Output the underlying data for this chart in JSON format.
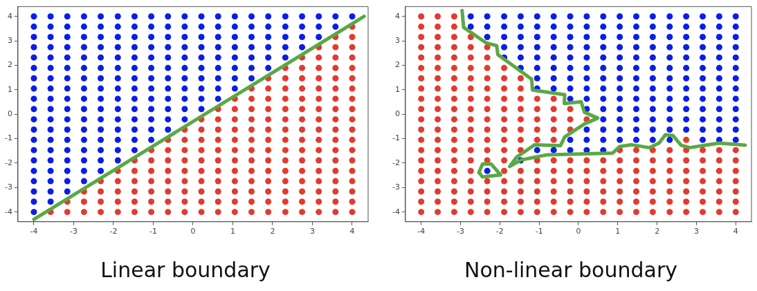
{
  "chart_data": [
    {
      "type": "scatter",
      "title": "Linear boundary",
      "xlim": [
        -4.4,
        4.4
      ],
      "ylim": [
        -4.4,
        4.4
      ],
      "xticks": [
        -4,
        -3,
        -2,
        -1,
        0,
        1,
        2,
        3,
        4
      ],
      "yticks": [
        -4,
        -3,
        -2,
        -1,
        0,
        1,
        2,
        3,
        4
      ],
      "grid": false,
      "legend": false,
      "marker": "circle",
      "series": [
        {
          "color": "#0a1ee6",
          "x": [
            -4,
            -3.58,
            -3.16,
            -2.74,
            -2.32,
            -1.89,
            -1.47,
            -1.05,
            -0.63,
            -0.21,
            0.21,
            0.63,
            1.05,
            1.47,
            1.89,
            2.32,
            2.74,
            3.16,
            3.58,
            4,
            -4,
            -3.58,
            -3.16,
            -2.74,
            -2.32,
            -1.89,
            -1.47,
            -1.05,
            -0.63,
            -0.21,
            0.21,
            0.63,
            1.05,
            1.47,
            1.89,
            2.32,
            2.74,
            3.16,
            3.58,
            -4,
            -3.58,
            -3.16,
            -2.74,
            -2.32,
            -1.89,
            -1.47,
            -1.05,
            -0.63,
            -0.21,
            0.21,
            0.63,
            1.05,
            1.47,
            1.89,
            2.32,
            2.74,
            3.16,
            -4,
            -3.58,
            -3.16,
            -2.74,
            -2.32,
            -1.89,
            -1.47,
            -1.05,
            -0.63,
            -0.21,
            0.21,
            0.63,
            1.05,
            1.47,
            1.89,
            2.32,
            2.74,
            -4,
            -3.58,
            -3.16,
            -2.74,
            -2.32,
            -1.89,
            -1.47,
            -1.05,
            -0.63,
            -0.21,
            0.21,
            0.63,
            1.05,
            1.47,
            1.89,
            2.32,
            -4,
            -3.58,
            -3.16,
            -2.74,
            -2.32,
            -1.89,
            -1.47,
            -1.05,
            -0.63,
            -0.21,
            0.21,
            0.63,
            1.05,
            1.47,
            1.89,
            -4,
            -3.58,
            -3.16,
            -2.74,
            -2.32,
            -1.89,
            -1.47,
            -1.05,
            -0.63,
            -0.21,
            0.21,
            0.63,
            1.05,
            1.47,
            -4,
            -3.58,
            -3.16,
            -2.74,
            -2.32,
            -1.89,
            -1.47,
            -1.05,
            -0.63,
            -0.21,
            0.21,
            0.63,
            1.05,
            -4,
            -3.58,
            -3.16,
            -2.74,
            -2.32,
            -1.89,
            -1.47,
            -1.05,
            -0.63,
            -0.21,
            0.21,
            0.63,
            -4,
            -3.58,
            -3.16,
            -2.74,
            -2.32,
            -1.89,
            -1.47,
            -1.05,
            -0.63,
            -0.21,
            0.21,
            -4,
            -3.58,
            -3.16,
            -2.74,
            -2.32,
            -1.89,
            -1.47,
            -1.05,
            -0.63,
            -0.21,
            -4,
            -3.58,
            -3.16,
            -2.74,
            -2.32,
            -1.89,
            -1.47,
            -1.05,
            -0.63,
            -4,
            -3.58,
            -3.16,
            -2.74,
            -2.32,
            -1.89,
            -1.47,
            -1.05,
            -4,
            -3.58,
            -3.16,
            -2.74,
            -2.32,
            -1.89,
            -1.47,
            -4,
            -3.58,
            -3.16,
            -2.74,
            -2.32,
            -1.89,
            -4,
            -3.58,
            -3.16,
            -2.74,
            -2.32,
            -4,
            -3.58,
            -3.16,
            -2.74,
            -4,
            -3.58,
            -3.16,
            -4,
            -3.58,
            -4
          ],
          "values": [
            4,
            4,
            4,
            4,
            4,
            4,
            4,
            4,
            4,
            4,
            4,
            4,
            4,
            4,
            4,
            4,
            4,
            4,
            4,
            4,
            3.58,
            3.58,
            3.58,
            3.58,
            3.58,
            3.58,
            3.58,
            3.58,
            3.58,
            3.58,
            3.58,
            3.58,
            3.58,
            3.58,
            3.58,
            3.58,
            3.58,
            3.58,
            3.58,
            3.16,
            3.16,
            3.16,
            3.16,
            3.16,
            3.16,
            3.16,
            3.16,
            3.16,
            3.16,
            3.16,
            3.16,
            3.16,
            3.16,
            3.16,
            3.16,
            3.16,
            3.16,
            2.74,
            2.74,
            2.74,
            2.74,
            2.74,
            2.74,
            2.74,
            2.74,
            2.74,
            2.74,
            2.74,
            2.74,
            2.74,
            2.74,
            2.74,
            2.74,
            2.74,
            2.32,
            2.32,
            2.32,
            2.32,
            2.32,
            2.32,
            2.32,
            2.32,
            2.32,
            2.32,
            2.32,
            2.32,
            2.32,
            2.32,
            2.32,
            2.32,
            1.89,
            1.89,
            1.89,
            1.89,
            1.89,
            1.89,
            1.89,
            1.89,
            1.89,
            1.89,
            1.89,
            1.89,
            1.89,
            1.89,
            1.89,
            1.47,
            1.47,
            1.47,
            1.47,
            1.47,
            1.47,
            1.47,
            1.47,
            1.47,
            1.47,
            1.47,
            1.47,
            1.47,
            1.47,
            1.05,
            1.05,
            1.05,
            1.05,
            1.05,
            1.05,
            1.05,
            1.05,
            1.05,
            1.05,
            1.05,
            1.05,
            1.05,
            0.63,
            0.63,
            0.63,
            0.63,
            0.63,
            0.63,
            0.63,
            0.63,
            0.63,
            0.63,
            0.63,
            0.63,
            0.21,
            0.21,
            0.21,
            0.21,
            0.21,
            0.21,
            0.21,
            0.21,
            0.21,
            0.21,
            0.21,
            -0.21,
            -0.21,
            -0.21,
            -0.21,
            -0.21,
            -0.21,
            -0.21,
            -0.21,
            -0.21,
            -0.21,
            -0.63,
            -0.63,
            -0.63,
            -0.63,
            -0.63,
            -0.63,
            -0.63,
            -0.63,
            -0.63,
            -1.05,
            -1.05,
            -1.05,
            -1.05,
            -1.05,
            -1.05,
            -1.05,
            -1.05,
            -1.47,
            -1.47,
            -1.47,
            -1.47,
            -1.47,
            -1.47,
            -1.47,
            -1.89,
            -1.89,
            -1.89,
            -1.89,
            -1.89,
            -1.89,
            -2.32,
            -2.32,
            -2.32,
            -2.32,
            -2.32,
            -2.74,
            -2.74,
            -2.74,
            -2.74,
            -3.16,
            -3.16,
            -3.16,
            -3.58,
            -3.58,
            -4
          ]
        },
        {
          "color": "#e33a2f",
          "x": [
            4,
            3.58,
            4,
            3.16,
            3.58,
            4,
            2.74,
            3.16,
            3.58,
            4,
            2.32,
            2.74,
            3.16,
            3.58,
            4,
            1.89,
            2.32,
            2.74,
            3.16,
            3.58,
            4,
            1.47,
            1.89,
            2.32,
            2.74,
            3.16,
            3.58,
            4,
            1.05,
            1.47,
            1.89,
            2.32,
            2.74,
            3.16,
            3.58,
            4,
            0.63,
            1.05,
            1.47,
            1.89,
            2.32,
            2.74,
            3.16,
            3.58,
            4,
            0.21,
            0.63,
            1.05,
            1.47,
            1.89,
            2.32,
            2.74,
            3.16,
            3.58,
            4,
            -0.21,
            0.21,
            0.63,
            1.05,
            1.47,
            1.89,
            2.32,
            2.74,
            3.16,
            3.58,
            4,
            -0.63,
            -0.21,
            0.21,
            0.63,
            1.05,
            1.47,
            1.89,
            2.32,
            2.74,
            3.16,
            3.58,
            4,
            -1.05,
            -0.63,
            -0.21,
            0.21,
            0.63,
            1.05,
            1.47,
            1.89,
            2.32,
            2.74,
            3.16,
            3.58,
            4,
            -1.47,
            -1.05,
            -0.63,
            -0.21,
            0.21,
            0.63,
            1.05,
            1.47,
            1.89,
            2.32,
            2.74,
            3.16,
            3.58,
            4,
            -1.89,
            -1.47,
            -1.05,
            -0.63,
            -0.21,
            0.21,
            0.63,
            1.05,
            1.47,
            1.89,
            2.32,
            2.74,
            3.16,
            3.58,
            4,
            -2.32,
            -1.89,
            -1.47,
            -1.05,
            -0.63,
            -0.21,
            0.21,
            0.63,
            1.05,
            1.47,
            1.89,
            2.32,
            2.74,
            3.16,
            3.58,
            4,
            -2.74,
            -2.32,
            -1.89,
            -1.47,
            -1.05,
            -0.63,
            -0.21,
            0.21,
            0.63,
            1.05,
            1.47,
            1.89,
            2.32,
            2.74,
            3.16,
            3.58,
            4,
            -3.16,
            -2.74,
            -2.32,
            -1.89,
            -1.47,
            -1.05,
            -0.63,
            -0.21,
            0.21,
            0.63,
            1.05,
            1.47,
            1.89,
            2.32,
            2.74,
            3.16,
            3.58,
            4,
            -3.58,
            -3.16,
            -2.74,
            -2.32,
            -1.89,
            -1.47,
            -1.05,
            -0.63,
            -0.21,
            0.21,
            0.63,
            1.05,
            1.47,
            1.89,
            2.32,
            2.74,
            3.16,
            3.58,
            4
          ],
          "values": [
            3.58,
            3.16,
            3.16,
            2.74,
            2.74,
            2.74,
            2.32,
            2.32,
            2.32,
            2.32,
            1.89,
            1.89,
            1.89,
            1.89,
            1.89,
            1.47,
            1.47,
            1.47,
            1.47,
            1.47,
            1.47,
            1.05,
            1.05,
            1.05,
            1.05,
            1.05,
            1.05,
            1.05,
            0.63,
            0.63,
            0.63,
            0.63,
            0.63,
            0.63,
            0.63,
            0.63,
            0.21,
            0.21,
            0.21,
            0.21,
            0.21,
            0.21,
            0.21,
            0.21,
            0.21,
            -0.21,
            -0.21,
            -0.21,
            -0.21,
            -0.21,
            -0.21,
            -0.21,
            -0.21,
            -0.21,
            -0.21,
            -0.63,
            -0.63,
            -0.63,
            -0.63,
            -0.63,
            -0.63,
            -0.63,
            -0.63,
            -0.63,
            -0.63,
            -0.63,
            -1.05,
            -1.05,
            -1.05,
            -1.05,
            -1.05,
            -1.05,
            -1.05,
            -1.05,
            -1.05,
            -1.05,
            -1.05,
            -1.05,
            -1.47,
            -1.47,
            -1.47,
            -1.47,
            -1.47,
            -1.47,
            -1.47,
            -1.47,
            -1.47,
            -1.47,
            -1.47,
            -1.47,
            -1.47,
            -1.89,
            -1.89,
            -1.89,
            -1.89,
            -1.89,
            -1.89,
            -1.89,
            -1.89,
            -1.89,
            -1.89,
            -1.89,
            -1.89,
            -1.89,
            -1.89,
            -2.32,
            -2.32,
            -2.32,
            -2.32,
            -2.32,
            -2.32,
            -2.32,
            -2.32,
            -2.32,
            -2.32,
            -2.32,
            -2.32,
            -2.32,
            -2.32,
            -2.32,
            -2.74,
            -2.74,
            -2.74,
            -2.74,
            -2.74,
            -2.74,
            -2.74,
            -2.74,
            -2.74,
            -2.74,
            -2.74,
            -2.74,
            -2.74,
            -2.74,
            -2.74,
            -2.74,
            -3.16,
            -3.16,
            -3.16,
            -3.16,
            -3.16,
            -3.16,
            -3.16,
            -3.16,
            -3.16,
            -3.16,
            -3.16,
            -3.16,
            -3.16,
            -3.16,
            -3.16,
            -3.16,
            -3.16,
            -3.58,
            -3.58,
            -3.58,
            -3.58,
            -3.58,
            -3.58,
            -3.58,
            -3.58,
            -3.58,
            -3.58,
            -3.58,
            -3.58,
            -3.58,
            -3.58,
            -3.58,
            -3.58,
            -3.58,
            -3.58,
            -4,
            -4,
            -4,
            -4,
            -4,
            -4,
            -4,
            -4,
            -4,
            -4,
            -4,
            -4,
            -4,
            -4,
            -4,
            -4,
            -4,
            -4,
            -4
          ]
        },
        {
          "type": "line",
          "marker": "none",
          "color": "#5aa845",
          "x": [
            -4,
            4.3
          ],
          "values": [
            -4.3,
            4
          ]
        }
      ]
    },
    {
      "type": "scatter",
      "title": "Non-linear boundary",
      "xlim": [
        -4.4,
        4.4
      ],
      "ylim": [
        -4.4,
        4.4
      ],
      "xticks": [
        -4,
        -3,
        -2,
        -1,
        0,
        1,
        2,
        3,
        4
      ],
      "yticks": [
        -4,
        -3,
        -2,
        -1,
        0,
        1,
        2,
        3,
        4
      ],
      "grid": false,
      "legend": false,
      "marker": "circle",
      "series": [
        {
          "color": "#0a1ee6",
          "x": [
            -2.74,
            -2.32,
            -1.89,
            -1.47,
            -1.05,
            -0.63,
            -0.21,
            0.21,
            0.63,
            1.05,
            1.47,
            1.89,
            2.32,
            2.74,
            3.16,
            3.58,
            4,
            -2.74,
            -2.32,
            -1.89,
            -1.47,
            -1.05,
            -0.63,
            -0.21,
            0.21,
            0.63,
            1.05,
            1.47,
            1.89,
            2.32,
            2.74,
            3.16,
            3.58,
            4,
            -2.32,
            -1.89,
            -1.47,
            -1.05,
            -0.63,
            -0.21,
            0.21,
            0.63,
            1.05,
            1.47,
            1.89,
            2.32,
            2.74,
            3.16,
            3.58,
            4,
            -1.89,
            -1.47,
            -1.05,
            -0.63,
            -0.21,
            0.21,
            0.63,
            1.05,
            1.47,
            1.89,
            2.32,
            2.74,
            3.16,
            3.58,
            4,
            -1.89,
            -1.47,
            -1.05,
            -0.63,
            -0.21,
            0.21,
            0.63,
            1.05,
            1.47,
            1.89,
            2.32,
            2.74,
            3.16,
            3.58,
            4,
            -1.47,
            -1.05,
            -0.63,
            -0.21,
            0.21,
            0.63,
            1.05,
            1.47,
            1.89,
            2.32,
            2.74,
            3.16,
            3.58,
            4,
            -1.05,
            -0.63,
            -0.21,
            0.21,
            0.63,
            1.05,
            1.47,
            1.89,
            2.32,
            2.74,
            3.16,
            3.58,
            4,
            -1.05,
            -0.63,
            -0.21,
            0.21,
            0.63,
            1.05,
            1.47,
            1.89,
            2.32,
            2.74,
            3.16,
            3.58,
            4,
            -0.21,
            0.21,
            0.63,
            1.05,
            1.47,
            1.89,
            2.32,
            2.74,
            3.16,
            3.58,
            4,
            0.21,
            0.63,
            1.05,
            1.47,
            1.89,
            2.32,
            2.74,
            3.16,
            3.58,
            4,
            0.63,
            1.05,
            1.47,
            1.89,
            2.32,
            2.74,
            3.16,
            3.58,
            4,
            0.21,
            0.63,
            1.05,
            1.47,
            1.89,
            2.32,
            2.74,
            3.16,
            3.58,
            4,
            -0.21,
            0.21,
            0.63,
            1.05,
            1.47,
            1.89,
            2.32,
            3.16,
            3.58,
            4,
            -1.05,
            -0.63,
            -0.21,
            0.21,
            0.63,
            -1.47,
            -2.32
          ],
          "values": [
            4,
            4,
            4,
            4,
            4,
            4,
            4,
            4,
            4,
            4,
            4,
            4,
            4,
            4,
            4,
            4,
            4,
            3.58,
            3.58,
            3.58,
            3.58,
            3.58,
            3.58,
            3.58,
            3.58,
            3.58,
            3.58,
            3.58,
            3.58,
            3.58,
            3.58,
            3.58,
            3.58,
            3.58,
            3.16,
            3.16,
            3.16,
            3.16,
            3.16,
            3.16,
            3.16,
            3.16,
            3.16,
            3.16,
            3.16,
            3.16,
            3.16,
            3.16,
            3.16,
            3.16,
            2.74,
            2.74,
            2.74,
            2.74,
            2.74,
            2.74,
            2.74,
            2.74,
            2.74,
            2.74,
            2.74,
            2.74,
            2.74,
            2.74,
            2.74,
            2.32,
            2.32,
            2.32,
            2.32,
            2.32,
            2.32,
            2.32,
            2.32,
            2.32,
            2.32,
            2.32,
            2.32,
            2.32,
            2.32,
            2.32,
            1.89,
            1.89,
            1.89,
            1.89,
            1.89,
            1.89,
            1.89,
            1.89,
            1.89,
            1.89,
            1.89,
            1.89,
            1.89,
            1.89,
            1.47,
            1.47,
            1.47,
            1.47,
            1.47,
            1.47,
            1.47,
            1.47,
            1.47,
            1.47,
            1.47,
            1.47,
            1.47,
            1.05,
            1.05,
            1.05,
            1.05,
            1.05,
            1.05,
            1.05,
            1.05,
            1.05,
            1.05,
            1.05,
            1.05,
            1.05,
            0.63,
            0.63,
            0.63,
            0.63,
            0.63,
            0.63,
            0.63,
            0.63,
            0.63,
            0.63,
            0.63,
            0.21,
            0.21,
            0.21,
            0.21,
            0.21,
            0.21,
            0.21,
            0.21,
            0.21,
            0.21,
            -0.21,
            -0.21,
            -0.21,
            -0.21,
            -0.21,
            -0.21,
            -0.21,
            -0.21,
            -0.21,
            -0.63,
            -0.63,
            -0.63,
            -0.63,
            -0.63,
            -0.63,
            -0.63,
            -0.63,
            -0.63,
            -0.63,
            -1.05,
            -1.05,
            -1.05,
            -1.05,
            -1.05,
            -1.05,
            -1.05,
            -1.05,
            -1.05,
            -1.05,
            -1.47,
            -1.47,
            -1.47,
            -1.47,
            -1.47,
            -1.89,
            -2.32
          ]
        },
        {
          "color": "#e33a2f",
          "x": [
            -4,
            -3.58,
            -3.16,
            -4,
            -3.58,
            -3.16,
            -4,
            -3.58,
            -3.16,
            -2.74,
            -4,
            -3.58,
            -3.16,
            -2.74,
            -2.32,
            -4,
            -3.58,
            -3.16,
            -2.74,
            -2.32,
            -4,
            -3.58,
            -3.16,
            -2.74,
            -2.32,
            -1.89,
            -4,
            -3.58,
            -3.16,
            -2.74,
            -2.32,
            -1.89,
            -1.47,
            -4,
            -3.58,
            -3.16,
            -2.74,
            -2.32,
            -1.89,
            -1.47,
            -4,
            -3.58,
            -3.16,
            -2.74,
            -2.32,
            -1.89,
            -1.47,
            -1.05,
            -0.63,
            -4,
            -3.58,
            -3.16,
            -2.74,
            -2.32,
            -1.89,
            -1.47,
            -1.05,
            -0.63,
            -0.21,
            -4,
            -3.58,
            -3.16,
            -2.74,
            -2.32,
            -1.89,
            -1.47,
            -1.05,
            -0.63,
            -0.21,
            0.21,
            -4,
            -3.58,
            -3.16,
            -2.74,
            -2.32,
            -1.89,
            -1.47,
            -1.05,
            -0.63,
            -0.21,
            -4,
            -3.58,
            -3.16,
            -2.74,
            -2.32,
            -1.89,
            -1.47,
            -1.05,
            -0.63,
            2.74,
            -4,
            -3.58,
            -3.16,
            -2.74,
            -2.32,
            -1.89,
            -1.47,
            1.05,
            1.47,
            1.89,
            2.32,
            2.74,
            3.16,
            3.58,
            4,
            -4,
            -3.58,
            -3.16,
            -2.74,
            -2.32,
            -1.89,
            -1.05,
            -0.63,
            -0.21,
            0.21,
            0.63,
            1.05,
            1.47,
            1.89,
            2.32,
            2.74,
            3.16,
            3.58,
            4,
            -4,
            -3.58,
            -3.16,
            -2.74,
            -1.89,
            -1.47,
            -1.05,
            -0.63,
            -0.21,
            0.21,
            0.63,
            1.05,
            1.47,
            1.89,
            2.32,
            2.74,
            3.16,
            3.58,
            4,
            -4,
            -3.58,
            -3.16,
            -2.74,
            -2.32,
            -1.89,
            -1.47,
            -1.05,
            -0.63,
            -0.21,
            0.21,
            0.63,
            1.05,
            1.47,
            1.89,
            2.32,
            2.74,
            3.16,
            3.58,
            4,
            -4,
            -3.58,
            -3.16,
            -2.74,
            -2.32,
            -1.89,
            -1.47,
            -1.05,
            -0.63,
            -0.21,
            0.21,
            0.63,
            1.05,
            1.47,
            1.89,
            2.32,
            2.74,
            3.16,
            3.58,
            4,
            -4,
            -3.58,
            -3.16,
            -2.74,
            -2.32,
            -1.89,
            -1.47,
            -1.05,
            -0.63,
            -0.21,
            0.21,
            0.63,
            1.05,
            1.47,
            1.89,
            2.32,
            2.74,
            3.16,
            3.58,
            4,
            -4,
            -3.58,
            -3.16,
            -2.74,
            -2.32,
            -1.89,
            -1.47,
            -1.05,
            -0.63,
            -0.21,
            0.21,
            0.63,
            1.05,
            1.47,
            1.89,
            2.32,
            2.74,
            3.16,
            3.58,
            4
          ],
          "values": [
            4,
            4,
            4,
            3.58,
            3.58,
            3.58,
            3.16,
            3.16,
            3.16,
            3.16,
            2.74,
            2.74,
            2.74,
            2.74,
            2.74,
            2.32,
            2.32,
            2.32,
            2.32,
            2.32,
            1.89,
            1.89,
            1.89,
            1.89,
            1.89,
            1.89,
            1.47,
            1.47,
            1.47,
            1.47,
            1.47,
            1.47,
            1.47,
            1.05,
            1.05,
            1.05,
            1.05,
            1.05,
            1.05,
            1.05,
            0.63,
            0.63,
            0.63,
            0.63,
            0.63,
            0.63,
            0.63,
            0.63,
            0.63,
            0.21,
            0.21,
            0.21,
            0.21,
            0.21,
            0.21,
            0.21,
            0.21,
            0.21,
            0.21,
            -0.21,
            -0.21,
            -0.21,
            -0.21,
            -0.21,
            -0.21,
            -0.21,
            -0.21,
            -0.21,
            -0.21,
            -0.21,
            -0.63,
            -0.63,
            -0.63,
            -0.63,
            -0.63,
            -0.63,
            -0.63,
            -0.63,
            -0.63,
            -0.63,
            -1.05,
            -1.05,
            -1.05,
            -1.05,
            -1.05,
            -1.05,
            -1.05,
            -1.05,
            -1.05,
            -1.05,
            -1.47,
            -1.47,
            -1.47,
            -1.47,
            -1.47,
            -1.47,
            -1.47,
            -1.47,
            -1.47,
            -1.47,
            -1.47,
            -1.47,
            -1.47,
            -1.47,
            -1.47,
            -1.89,
            -1.89,
            -1.89,
            -1.89,
            -1.89,
            -1.89,
            -1.89,
            -1.89,
            -1.89,
            -1.89,
            -1.89,
            -1.89,
            -1.89,
            -1.89,
            -1.89,
            -1.89,
            -1.89,
            -1.89,
            -1.89,
            -2.32,
            -2.32,
            -2.32,
            -2.32,
            -2.32,
            -2.32,
            -2.32,
            -2.32,
            -2.32,
            -2.32,
            -2.32,
            -2.32,
            -2.32,
            -2.32,
            -2.32,
            -2.32,
            -2.32,
            -2.32,
            -2.32,
            -2.74,
            -2.74,
            -2.74,
            -2.74,
            -2.74,
            -2.74,
            -2.74,
            -2.74,
            -2.74,
            -2.74,
            -2.74,
            -2.74,
            -2.74,
            -2.74,
            -2.74,
            -2.74,
            -2.74,
            -2.74,
            -2.74,
            -2.74,
            -3.16,
            -3.16,
            -3.16,
            -3.16,
            -3.16,
            -3.16,
            -3.16,
            -3.16,
            -3.16,
            -3.16,
            -3.16,
            -3.16,
            -3.16,
            -3.16,
            -3.16,
            -3.16,
            -3.16,
            -3.16,
            -3.16,
            -3.16,
            -3.58,
            -3.58,
            -3.58,
            -3.58,
            -3.58,
            -3.58,
            -3.58,
            -3.58,
            -3.58,
            -3.58,
            -3.58,
            -3.58,
            -3.58,
            -3.58,
            -3.58,
            -3.58,
            -3.58,
            -3.58,
            -3.58,
            -3.58,
            -4,
            -4,
            -4,
            -4,
            -4,
            -4,
            -4,
            -4,
            -4,
            -4,
            -4,
            -4,
            -4,
            -4,
            -4,
            -4,
            -4,
            -4,
            -4,
            -4
          ]
        },
        {
          "type": "line",
          "marker": "none",
          "color": "#5aa845",
          "x": [
            -2.96,
            -2.92,
            -2.35,
            -2.08,
            -2.05,
            -1.19,
            -1.17,
            -0.35,
            -0.36,
            0.07,
            0.15,
            0.49,
            0.15,
            -0.35,
            -0.46,
            -1.11,
            -1.57,
            -1.75,
            -1.46,
            -0.79,
            0.87,
            1.05,
            1.34,
            1.8,
            2.05,
            2.21,
            2.4,
            2.61,
            2.83,
            3.58,
            4.24
          ],
          "values": [
            4.24,
            3.55,
            2.92,
            2.8,
            2.44,
            1.43,
            0.99,
            0.8,
            0.44,
            0.51,
            0.08,
            -0.16,
            -0.4,
            -0.93,
            -1.29,
            -1.25,
            -1.75,
            -2.14,
            -1.87,
            -1.66,
            -1.59,
            -1.32,
            -1.25,
            -1.37,
            -1.18,
            -0.84,
            -0.87,
            -1.27,
            -1.37,
            -1.18,
            -1.27
          ]
        },
        {
          "type": "line",
          "marker": "none",
          "color": "#5aa845",
          "x": [
            -2.53,
            -2.44,
            -2.22,
            -1.98
          ],
          "values": [
            -2.38,
            -2.04,
            -2.04,
            -2.48
          ]
        },
        {
          "type": "line",
          "marker": "none",
          "color": "#5aa845",
          "x": [
            -2.53,
            -2.44,
            -1.98
          ],
          "values": [
            -2.38,
            -2.57,
            -2.48
          ]
        }
      ]
    }
  ]
}
